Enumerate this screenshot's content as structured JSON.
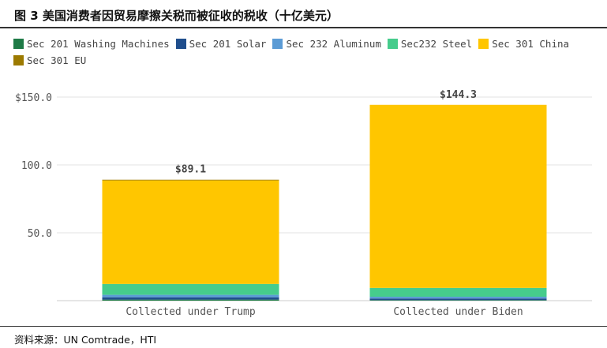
{
  "figure_title": "图 3  美国消费者因贸易摩擦关税而被征收的税收（十亿美元）",
  "source": "资料来源：UN Comtrade，HTI",
  "chart_data": {
    "type": "bar",
    "stacked": true,
    "categories": [
      "Collected under Trump",
      "Collected under Biden"
    ],
    "series": [
      {
        "name": "Sec 201 Washing Machines",
        "color": "#1e7a46",
        "values": [
          0.8,
          0.4
        ]
      },
      {
        "name": "Sec 201 Solar",
        "color": "#1f4e8c",
        "values": [
          1.7,
          1.2
        ]
      },
      {
        "name": "Sec 232 Aluminum",
        "color": "#5b9bd5",
        "values": [
          1.8,
          1.3
        ]
      },
      {
        "name": "Sec232 Steel",
        "color": "#46cc8c",
        "values": [
          8.0,
          6.5
        ]
      },
      {
        "name": "Sec 301 China",
        "color": "#ffc600",
        "values": [
          76.3,
          134.9
        ]
      },
      {
        "name": "Sec 301 EU",
        "color": "#9c7a00",
        "values": [
          0.5,
          0.0
        ]
      }
    ],
    "totals": [
      "$89.1",
      "$144.3"
    ],
    "yticks": [
      {
        "value": 50,
        "label": "50.0"
      },
      {
        "value": 100,
        "label": "100.0"
      },
      {
        "value": 150,
        "label": "$150.0"
      }
    ],
    "ylim": [
      0,
      150
    ],
    "xlabel": "",
    "ylabel": "",
    "legend_position": "top-left",
    "grid": true
  }
}
